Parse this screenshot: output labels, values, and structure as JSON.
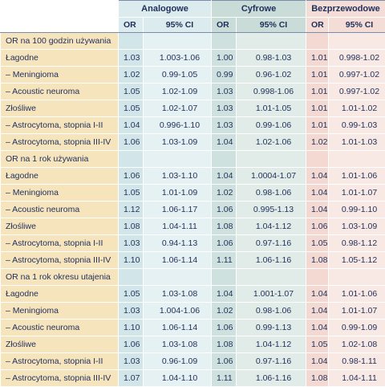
{
  "groups": {
    "analogowe": "Analogowe",
    "cyfrowe": "Cyfrowe",
    "bezprzewodowe": "Bezprzewodowe"
  },
  "subheaders": {
    "or": "OR",
    "ci": "95% CI"
  },
  "sections": [
    {
      "title": "OR na 100 godzin używania",
      "rows": [
        {
          "label": "Łagodne",
          "a_or": "1.03",
          "a_ci": "1.003-1.06",
          "c_or": "1.00",
          "c_ci": "0.98-1.03",
          "b_or": "1.01",
          "b_ci": "0.998-1.02"
        },
        {
          "label": "– Meningioma",
          "a_or": "1.02",
          "a_ci": "0.99-1.05",
          "c_or": "0.99",
          "c_ci": "0.96-1.02",
          "b_or": "1.01",
          "b_ci": "0.997-1.02"
        },
        {
          "label": "– Acoustic neuroma",
          "a_or": "1.05",
          "a_ci": "1.02-1.09",
          "c_or": "1.03",
          "c_ci": "0.998-1.06",
          "b_or": "1.01",
          "b_ci": "0.997-1.02"
        },
        {
          "label": "Złośliwe",
          "a_or": "1.05",
          "a_ci": "1.02-1.07",
          "c_or": "1.03",
          "c_ci": "1.01-1.05",
          "b_or": "1.01",
          "b_ci": "1.01-1.02"
        },
        {
          "label": "– Astrocytoma, stopnia I-II",
          "a_or": "1.04",
          "a_ci": "0.996-1.10",
          "c_or": "1.03",
          "c_ci": "0.99-1.06",
          "b_or": "1.01",
          "b_ci": "0.99-1.03"
        },
        {
          "label": "– Astrocytoma, stopnia III-IV",
          "a_or": "1.06",
          "a_ci": "1.03-1.09",
          "c_or": "1.04",
          "c_ci": "1.02-1.06",
          "b_or": "1.02",
          "b_ci": "1.01-1.03"
        }
      ]
    },
    {
      "title": "OR na 1 rok używania",
      "rows": [
        {
          "label": "Łagodne",
          "a_or": "1.06",
          "a_ci": "1.03-1.10",
          "c_or": "1.04",
          "c_ci": "1.0004-1.07",
          "b_or": "1.04",
          "b_ci": "1.01-1.06"
        },
        {
          "label": "– Meningioma",
          "a_or": "1.05",
          "a_ci": "1.01-1.09",
          "c_or": "1.02",
          "c_ci": "0.98-1.06",
          "b_or": "1.04",
          "b_ci": "1.01-1.07"
        },
        {
          "label": "– Acoustic neuroma",
          "a_or": "1.12",
          "a_ci": "1.06-1.17",
          "c_or": "1.06",
          "c_ci": "0.995-1.13",
          "b_or": "1.04",
          "b_ci": "0.99-1.10"
        },
        {
          "label": "Złośliwe",
          "a_or": "1.08",
          "a_ci": "1.04-1.11",
          "c_or": "1.08",
          "c_ci": "1.04-1.12",
          "b_or": "1.06",
          "b_ci": "1.03-1.09"
        },
        {
          "label": "– Astrocytoma, stopnia I-II",
          "a_or": "1.03",
          "a_ci": "0.94-1.13",
          "c_or": "1.06",
          "c_ci": "0.97-1.16",
          "b_or": "1.05",
          "b_ci": "0.98-1.12"
        },
        {
          "label": "– Astrocytoma, stopnia III-IV",
          "a_or": "1.10",
          "a_ci": "1.06-1.14",
          "c_or": "1.11",
          "c_ci": "1.06-1.16",
          "b_or": "1.08",
          "b_ci": "1.05-1.12"
        }
      ]
    },
    {
      "title": "OR na 1 rok okresu utajenia",
      "rows": [
        {
          "label": "Łagodne",
          "a_or": "1.05",
          "a_ci": "1.03-1.08",
          "c_or": "1.04",
          "c_ci": "1.001-1.07",
          "b_or": "1.04",
          "b_ci": "1.01-1.06"
        },
        {
          "label": "– Meningioma",
          "a_or": "1.03",
          "a_ci": "1.004-1.06",
          "c_or": "1.02",
          "c_ci": "0.98-1.06",
          "b_or": "1.04",
          "b_ci": "1.01-1.07"
        },
        {
          "label": "– Acoustic neuroma",
          "a_or": "1.10",
          "a_ci": "1.06-1.14",
          "c_or": "1.06",
          "c_ci": "0.99-1.13",
          "b_or": "1.04",
          "b_ci": "0.99-1.09"
        },
        {
          "label": "Złośliwe",
          "a_or": "1.06",
          "a_ci": "1.03-1.08",
          "c_or": "1.08",
          "c_ci": "1.04-1.12",
          "b_or": "1.05",
          "b_ci": "1.02-1.08"
        },
        {
          "label": "– Astrocytoma, stopnia I-II",
          "a_or": "1.03",
          "a_ci": "0.96-1.09",
          "c_or": "1.06",
          "c_ci": "0.97-1.16",
          "b_or": "1.04",
          "b_ci": "0.98-1.11"
        },
        {
          "label": "– Astrocytoma, stopnia III-IV",
          "a_or": "1.07",
          "a_ci": "1.04-1.10",
          "c_or": "1.11",
          "c_ci": "1.06-1.16",
          "b_or": "1.08",
          "b_ci": "1.04-1.11"
        }
      ]
    }
  ]
}
